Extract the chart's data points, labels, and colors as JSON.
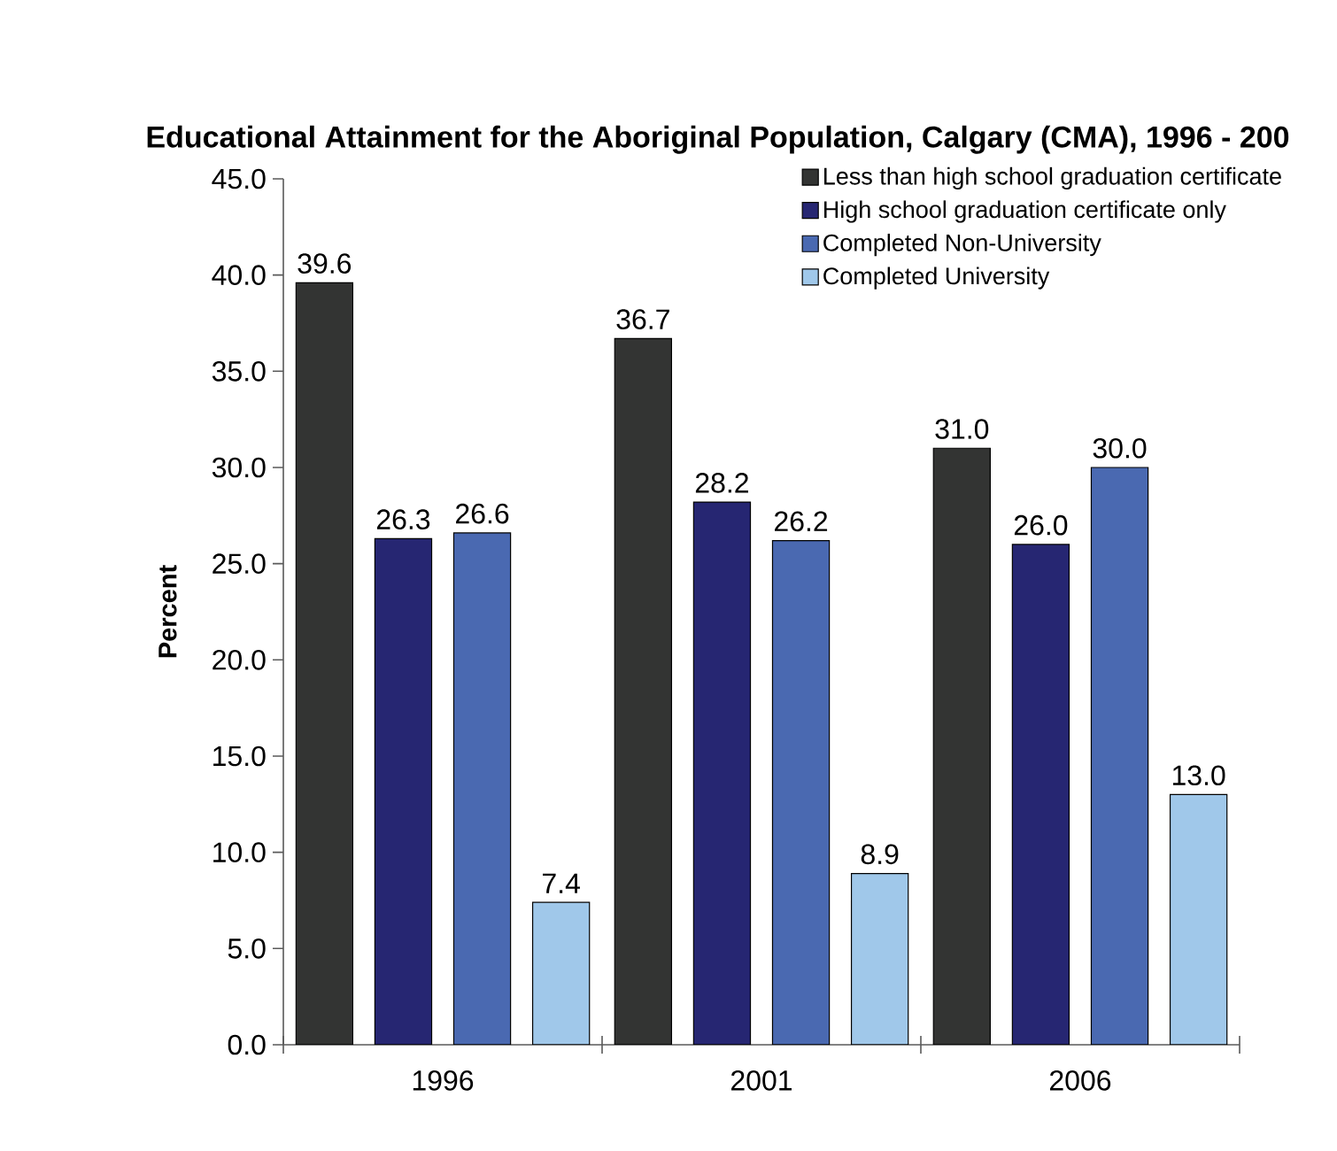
{
  "chart_data": {
    "type": "bar",
    "title": "Educational Attainment for the Aboriginal Population, Calgary (CMA), 1996 - 200",
    "ylabel": "Percent",
    "categories": [
      "1996",
      "2001",
      "2006"
    ],
    "series": [
      {
        "name": "Less than high school graduation certificate",
        "color": "#333433",
        "values": [
          39.6,
          36.7,
          31.0
        ],
        "value_labels": [
          "39.6",
          "36.7",
          "31.0"
        ]
      },
      {
        "name": "High school graduation certificate only",
        "color": "#262672",
        "values": [
          26.3,
          28.2,
          26.0
        ],
        "value_labels": [
          "26.3",
          "28.2",
          "26.0"
        ]
      },
      {
        "name": "Completed Non-University",
        "color": "#4a69b1",
        "values": [
          26.6,
          26.2,
          30.0
        ],
        "value_labels": [
          "26.6",
          "26.2",
          "30.0"
        ]
      },
      {
        "name": "Completed University",
        "color": "#a0c8ea",
        "values": [
          7.4,
          8.9,
          13.0
        ],
        "value_labels": [
          "7.4",
          "8.9",
          "13.0"
        ]
      }
    ],
    "ylim": [
      0,
      45
    ],
    "yticks": [
      {
        "value": 0,
        "label": "0.0"
      },
      {
        "value": 5,
        "label": "5.0"
      },
      {
        "value": 10,
        "label": "10.0"
      },
      {
        "value": 15,
        "label": "15.0"
      },
      {
        "value": 20,
        "label": "20.0"
      },
      {
        "value": 25,
        "label": "25.0"
      },
      {
        "value": 30,
        "label": "30.0"
      },
      {
        "value": 35,
        "label": "35.0"
      },
      {
        "value": 40,
        "label": "40.0"
      },
      {
        "value": 45,
        "label": "45.0"
      }
    ],
    "legend": "top right",
    "grid": false
  }
}
